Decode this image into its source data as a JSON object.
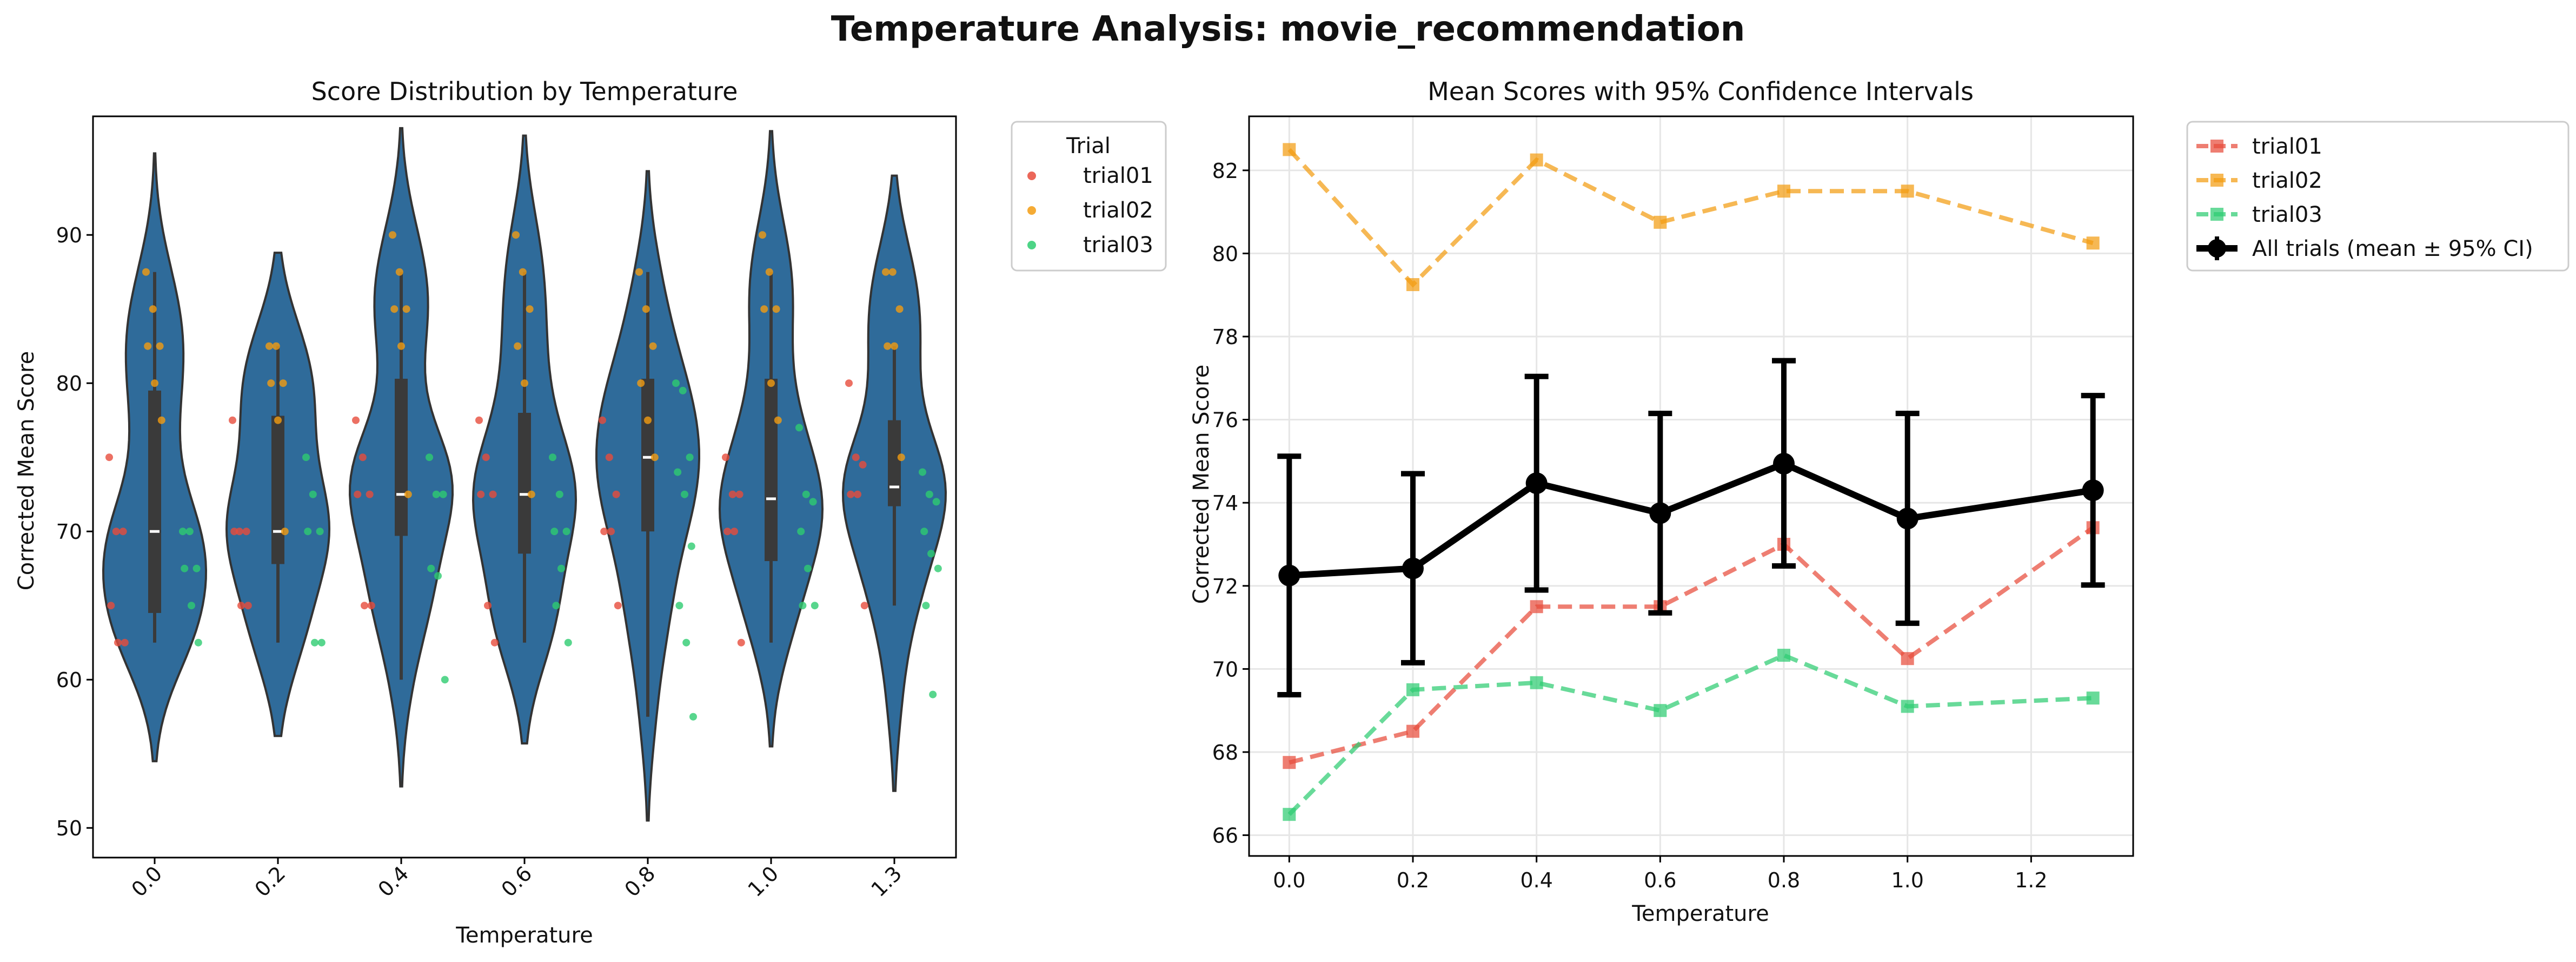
{
  "figure": {
    "suptitle": "Temperature Analysis: movie_recommendation"
  },
  "colors": {
    "trial01": "#e74c3c",
    "trial02": "#f39c12",
    "trial03": "#2ecc71",
    "violin": "#2f6b9a",
    "overall": "#000000",
    "grid": "#e6e6e6"
  },
  "chart_data": [
    {
      "type": "violin",
      "title": "Score Distribution by Temperature",
      "xlabel": "Temperature",
      "ylabel": "Corrected Mean Score",
      "categories": [
        "0.0",
        "0.2",
        "0.4",
        "0.6",
        "0.8",
        "1.0",
        "1.3"
      ],
      "yticks": [
        50,
        60,
        70,
        80,
        90
      ],
      "ylim": [
        48,
        98
      ],
      "grid": false,
      "legend": {
        "title": "Trial",
        "position": "outside-right",
        "entries": [
          "trial01",
          "trial02",
          "trial03"
        ]
      },
      "violins": [
        {
          "category": "0.0",
          "min": 54.5,
          "max": 95.5,
          "median": 70,
          "q1": 64.5,
          "q3": 79.5,
          "whisker_low": 62.5,
          "whisker_high": 87.5
        },
        {
          "category": "0.2",
          "min": 56.2,
          "max": 88.8,
          "median": 70,
          "q1": 67.8,
          "q3": 77.8,
          "whisker_low": 62.5,
          "whisker_high": 82.5
        },
        {
          "category": "0.4",
          "min": 52.8,
          "max": 97.2,
          "median": 72.5,
          "q1": 69.7,
          "q3": 80.3,
          "whisker_low": 60,
          "whisker_high": 87.5
        },
        {
          "category": "0.6",
          "min": 55.7,
          "max": 96.7,
          "median": 72.5,
          "q1": 68.5,
          "q3": 78,
          "whisker_low": 62.5,
          "whisker_high": 87.5
        },
        {
          "category": "0.8",
          "min": 50.5,
          "max": 94.3,
          "median": 75,
          "q1": 70,
          "q3": 80.3,
          "whisker_low": 57.5,
          "whisker_high": 87.5
        },
        {
          "category": "1.0",
          "min": 55.5,
          "max": 97,
          "median": 72.2,
          "q1": 68,
          "q3": 80.3,
          "whisker_low": 62.5,
          "whisker_high": 87.5
        },
        {
          "category": "1.3",
          "min": 52.5,
          "max": 94,
          "median": 73,
          "q1": 71.7,
          "q3": 77.5,
          "whisker_low": 65,
          "whisker_high": 82.5
        }
      ],
      "points": {
        "trial01": [
          [
            75,
            70,
            70,
            65,
            62.5,
            62.5
          ],
          [
            77.5,
            70,
            70,
            70,
            65,
            65
          ],
          [
            77.5,
            75,
            72.5,
            72.5,
            65,
            65
          ],
          [
            77.5,
            75,
            72.5,
            72.5,
            65,
            62.5
          ],
          [
            77.5,
            75,
            72.5,
            70,
            70,
            65
          ],
          [
            75,
            72.5,
            72.5,
            70,
            70,
            62.5
          ],
          [
            80,
            75,
            74.5,
            72.5,
            72.5,
            65
          ]
        ],
        "trial02": [
          [
            87.5,
            85,
            82.5,
            82.5,
            80,
            77.5
          ],
          [
            82.5,
            82.5,
            80,
            80,
            77.5,
            70
          ],
          [
            90,
            87.5,
            85,
            85,
            82.5,
            72.5
          ],
          [
            90,
            87.5,
            85,
            82.5,
            80,
            72.5
          ],
          [
            87.5,
            85,
            82.5,
            80,
            77.5,
            75
          ],
          [
            90,
            87.5,
            85,
            85,
            80,
            77.5
          ],
          [
            87.5,
            87.5,
            85,
            82.5,
            82.5,
            75
          ]
        ],
        "trial03": [
          [
            70,
            70,
            67.5,
            67.5,
            65,
            62.5
          ],
          [
            75,
            72.5,
            70,
            70,
            62.5,
            62.5
          ],
          [
            75,
            72.5,
            72.5,
            67.5,
            67,
            60
          ],
          [
            75,
            72.5,
            70,
            70,
            67.5,
            62.5,
            65
          ],
          [
            80,
            79.5,
            75,
            74,
            72.5,
            69,
            65,
            62.5,
            57.5
          ],
          [
            77,
            72.5,
            72,
            70,
            67.5,
            65,
            65
          ],
          [
            74,
            72.5,
            72,
            70,
            68.5,
            67.5,
            65,
            59
          ]
        ]
      }
    },
    {
      "type": "line",
      "title": "Mean Scores with 95% Confidence Intervals",
      "xlabel": "Temperature",
      "ylabel": "Corrected Mean Score",
      "x": [
        0.0,
        0.2,
        0.4,
        0.6,
        0.8,
        1.0,
        1.3
      ],
      "xticks": [
        "0.0",
        "0.2",
        "0.4",
        "0.6",
        "0.8",
        "1.0",
        "1.2"
      ],
      "xtick_values": [
        0.0,
        0.2,
        0.4,
        0.6,
        0.8,
        1.0,
        1.2
      ],
      "xlim": [
        -0.065,
        1.365
      ],
      "yticks": [
        66,
        68,
        70,
        72,
        74,
        76,
        78,
        80,
        82
      ],
      "ylim": [
        65.5,
        83.3
      ],
      "grid": true,
      "legend_position": "outside-right",
      "series": [
        {
          "name": "trial01",
          "style": "dashed",
          "marker": "square",
          "values": [
            67.75,
            68.5,
            71.5,
            71.5,
            73.0,
            70.25,
            73.4
          ]
        },
        {
          "name": "trial02",
          "style": "dashed",
          "marker": "square",
          "values": [
            82.5,
            79.25,
            82.25,
            80.75,
            81.5,
            81.5,
            80.25
          ]
        },
        {
          "name": "trial03",
          "style": "dashed",
          "marker": "square",
          "values": [
            66.5,
            69.5,
            69.67,
            69.0,
            70.33,
            69.1,
            69.3
          ]
        },
        {
          "name": "All trials (mean ± 95% CI)",
          "style": "solid",
          "marker": "circle",
          "values": [
            72.25,
            72.42,
            74.47,
            73.75,
            74.94,
            73.62,
            74.3
          ],
          "ci_low": [
            69.38,
            70.15,
            71.9,
            71.35,
            72.48,
            71.1,
            72.02
          ],
          "ci_high": [
            75.12,
            74.7,
            77.04,
            76.15,
            77.42,
            76.15,
            76.58
          ]
        }
      ]
    }
  ]
}
